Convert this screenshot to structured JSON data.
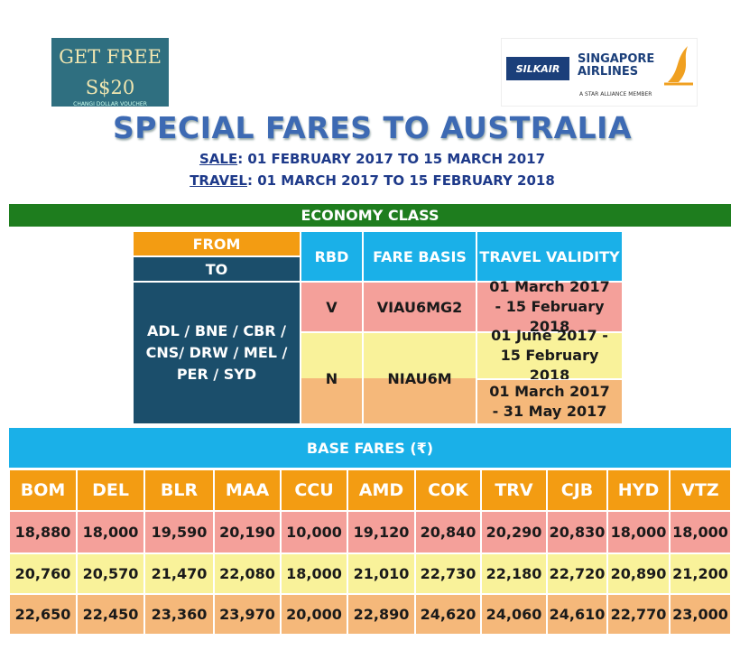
{
  "badge": {
    "title": "GET FREE",
    "amount": "S$20",
    "caption": "CHANGI DOLLAR VOUCHER"
  },
  "logo": {
    "silkair": "SILKAIR",
    "brand_line1": "SINGAPORE",
    "brand_line2": "AIRLINES",
    "tagline": "A STAR ALLIANCE MEMBER"
  },
  "header": {
    "title": "SPECIAL FARES TO AUSTRALIA",
    "sale_label": "SALE",
    "sale_dates": ": 01 FEBRUARY 2017 TO 15 MARCH 2017",
    "travel_label": "TRAVEL",
    "travel_dates": ": 01 MARCH 2017 TO 15 FEBRUARY 2018"
  },
  "section": "ECONOMY CLASS",
  "fare_table": {
    "headers": {
      "from": "FROM",
      "to": "TO",
      "rbd": "RBD",
      "fare_basis": "FARE BASIS",
      "validity": "TRAVEL VALIDITY"
    },
    "origins": "ADL / BNE / CBR / CNS/ DRW / MEL / PER / SYD",
    "rows": [
      {
        "rbd": "V",
        "fare_basis": "VIAU6MG2",
        "validity": [
          "01 March 2017 - 15 February 2018"
        ]
      },
      {
        "rbd": "N",
        "fare_basis": "NIAU6M",
        "validity": [
          "01 June 2017 - 15 February 2018",
          "01 March 2017 - 31 May 2017"
        ]
      }
    ]
  },
  "base_fares": {
    "title": "BASE FARES (₹)",
    "cities": [
      "BOM",
      "DEL",
      "BLR",
      "MAA",
      "CCU",
      "AMD",
      "COK",
      "TRV",
      "CJB",
      "HYD",
      "VTZ"
    ],
    "rows": [
      [
        "18,880",
        "18,000",
        "19,590",
        "20,190",
        "10,000",
        "19,120",
        "20,840",
        "20,290",
        "20,830",
        "18,000",
        "18,000"
      ],
      [
        "20,760",
        "20,570",
        "21,470",
        "22,080",
        "18,000",
        "21,010",
        "22,730",
        "22,180",
        "22,720",
        "20,890",
        "21,200"
      ],
      [
        "22,650",
        "22,450",
        "23,360",
        "23,970",
        "20,000",
        "22,890",
        "24,620",
        "24,060",
        "24,610",
        "22,770",
        "23,000"
      ]
    ]
  }
}
